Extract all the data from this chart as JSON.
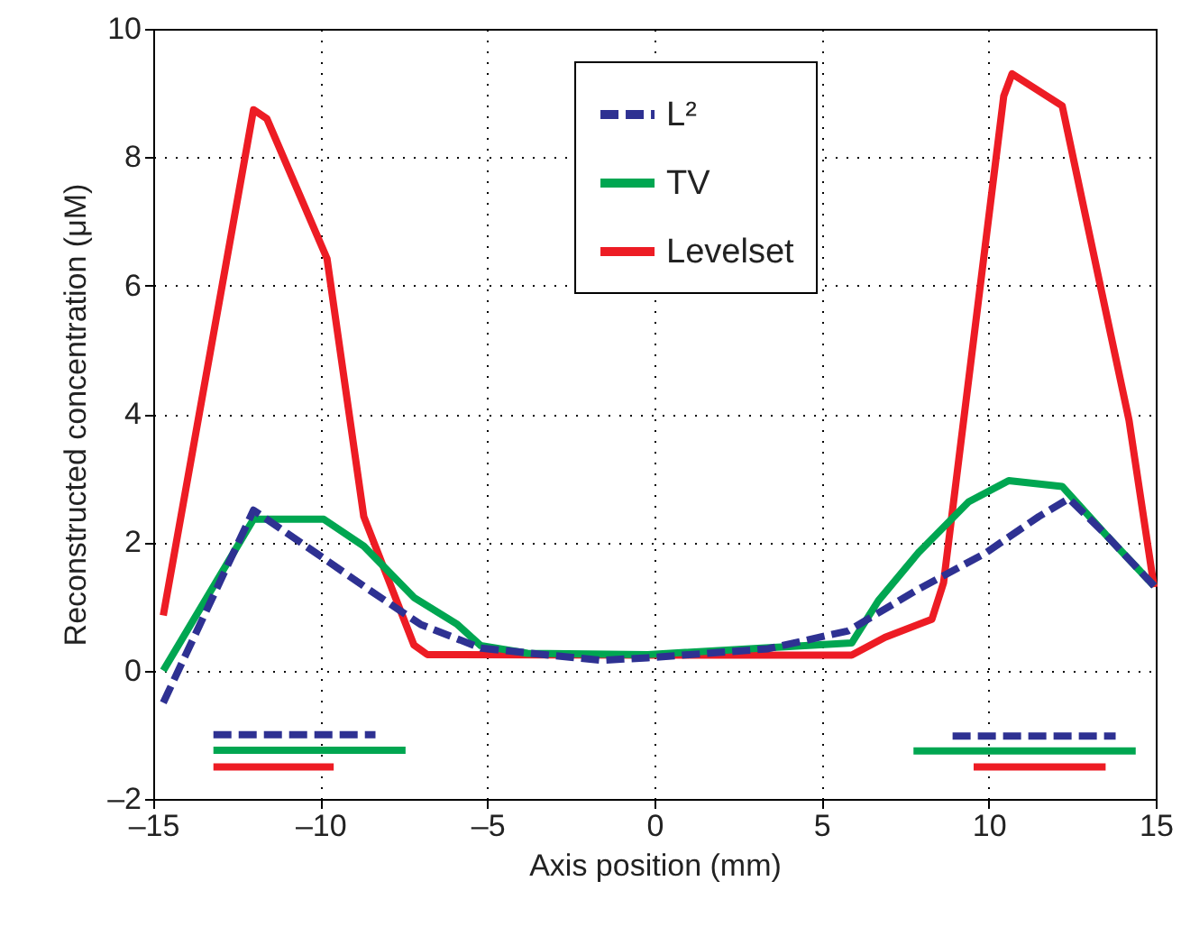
{
  "chart_data": {
    "type": "line",
    "xlabel": "Axis position (mm)",
    "ylabel": "Reconstructed concentration (μM)",
    "xlim": [
      -15,
      15
    ],
    "ylim": [
      -2,
      10
    ],
    "xticks": [
      {
        "value": -15,
        "label": "–15"
      },
      {
        "value": -10,
        "label": "–10"
      },
      {
        "value": -5,
        "label": "–5"
      },
      0,
      5,
      10,
      15
    ],
    "yticks": [
      {
        "value": -2,
        "label": "–2"
      },
      0,
      2,
      4,
      6,
      8,
      10
    ],
    "grid": true,
    "legend": "top",
    "marker": "none",
    "series": [
      {
        "name": "L²",
        "color": "#2e3192",
        "line_style": "dashed",
        "x": [
          -14.7,
          -12.0,
          -9.9,
          -8.6,
          -7.0,
          -5.2,
          -1.6,
          -0.2,
          3.4,
          5.8,
          7.9,
          9.9,
          11.5,
          12.4,
          13.5,
          14.95
        ],
        "values": [
          -0.5,
          2.5,
          1.75,
          1.28,
          0.72,
          0.35,
          0.16,
          0.2,
          0.34,
          0.62,
          1.27,
          1.83,
          2.4,
          2.68,
          2.12,
          1.32
        ]
      },
      {
        "name": "TV",
        "color": "#00a651",
        "line_style": "solid",
        "x": [
          -14.7,
          -12.0,
          -9.9,
          -8.7,
          -7.2,
          -5.9,
          -5.2,
          -3.8,
          -0.2,
          5.9,
          6.7,
          7.9,
          9.4,
          10.6,
          12.2,
          13.5,
          14.95
        ],
        "values": [
          0.0,
          2.36,
          2.36,
          1.94,
          1.14,
          0.72,
          0.39,
          0.27,
          0.25,
          0.43,
          1.09,
          1.84,
          2.63,
          2.96,
          2.87,
          2.12,
          1.32
        ]
      },
      {
        "name": "Levelset",
        "color": "#ed1c24",
        "line_style": "solid",
        "x": [
          -14.7,
          -12.0,
          -11.6,
          -9.8,
          -8.7,
          -7.2,
          -6.8,
          -0.2,
          5.9,
          6.9,
          8.3,
          8.65,
          10.45,
          10.7,
          12.2,
          13.3,
          14.2,
          14.95
        ],
        "values": [
          0.86,
          8.74,
          8.6,
          6.42,
          2.4,
          0.4,
          0.25,
          0.24,
          0.24,
          0.52,
          0.8,
          1.37,
          8.95,
          9.3,
          8.8,
          6.1,
          3.9,
          1.3
        ]
      },
      {
        "color": "#2e3192",
        "line_style": "dashed",
        "x": [
          -13.2,
          -8.35
        ],
        "values": [
          -1.0,
          -1.0
        ]
      },
      {
        "color": "#00a651",
        "line_style": "solid",
        "x": [
          -13.2,
          -7.45
        ],
        "values": [
          -1.24,
          -1.24
        ]
      },
      {
        "color": "#ed1c24",
        "line_style": "solid",
        "x": [
          -13.2,
          -9.6
        ],
        "values": [
          -1.5,
          -1.5
        ]
      },
      {
        "color": "#2e3192",
        "line_style": "dashed",
        "x": [
          8.92,
          13.8
        ],
        "values": [
          -1.02,
          -1.02
        ]
      },
      {
        "color": "#00a651",
        "line_style": "solid",
        "x": [
          7.75,
          14.4
        ],
        "values": [
          -1.25,
          -1.25
        ]
      },
      {
        "color": "#ed1c24",
        "line_style": "solid",
        "x": [
          9.55,
          13.5
        ],
        "values": [
          -1.5,
          -1.5
        ]
      }
    ]
  }
}
